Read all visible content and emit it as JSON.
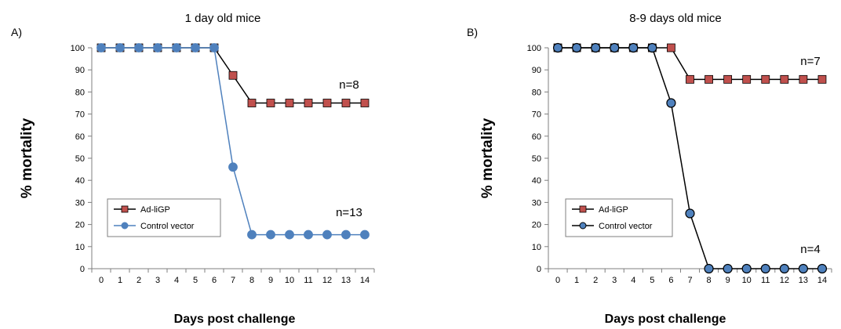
{
  "chart_data": [
    {
      "type": "line",
      "panel_label": "A)",
      "title": "1 day old mice",
      "xlabel": "Days post challenge",
      "ylabel": "% mortality",
      "x": [
        0,
        1,
        2,
        3,
        4,
        5,
        6,
        7,
        8,
        9,
        10,
        11,
        12,
        13,
        14
      ],
      "xlim": [
        0,
        14
      ],
      "ylim": [
        0,
        100
      ],
      "y_ticks": [
        0,
        10,
        20,
        30,
        40,
        50,
        60,
        70,
        80,
        90,
        100
      ],
      "grid": false,
      "legend_position": "bottom-left",
      "series": [
        {
          "name": "Ad-liGP",
          "color": "#c0504d",
          "marker": "square",
          "values": [
            100,
            100,
            100,
            100,
            100,
            100,
            100,
            87.5,
            75,
            75,
            75,
            75,
            75,
            75,
            75
          ]
        },
        {
          "name": "Control vector",
          "color": "#4f81bd",
          "marker": "circle",
          "values": [
            100,
            100,
            100,
            100,
            100,
            100,
            100,
            46,
            15.4,
            15.4,
            15.4,
            15.4,
            15.4,
            15.4,
            15.4
          ]
        }
      ],
      "annotations": [
        {
          "text": "n=8",
          "series": 0
        },
        {
          "text": "n=13",
          "series": 1
        }
      ]
    },
    {
      "type": "line",
      "panel_label": "B)",
      "title": "8-9 days old mice",
      "xlabel": "Days post challenge",
      "ylabel": "% mortality",
      "x": [
        0,
        1,
        2,
        3,
        4,
        5,
        6,
        7,
        8,
        9,
        10,
        11,
        12,
        13,
        14
      ],
      "xlim": [
        0,
        14
      ],
      "ylim": [
        0,
        100
      ],
      "y_ticks": [
        0,
        10,
        20,
        30,
        40,
        50,
        60,
        70,
        80,
        90,
        100
      ],
      "grid": false,
      "legend_position": "bottom-left",
      "series": [
        {
          "name": "Ad-liGP",
          "color": "#c0504d",
          "marker": "square",
          "values": [
            100,
            100,
            100,
            100,
            100,
            100,
            100,
            85.7,
            85.7,
            85.7,
            85.7,
            85.7,
            85.7,
            85.7,
            85.7
          ]
        },
        {
          "name": "Control vector",
          "color": "#4f81bd",
          "marker": "circle",
          "values": [
            100,
            100,
            100,
            100,
            100,
            100,
            75,
            25,
            0,
            0,
            0,
            0,
            0,
            0,
            0
          ]
        }
      ],
      "annotations": [
        {
          "text": "n=7",
          "series": 0
        },
        {
          "text": "n=4",
          "series": 1
        }
      ]
    }
  ]
}
